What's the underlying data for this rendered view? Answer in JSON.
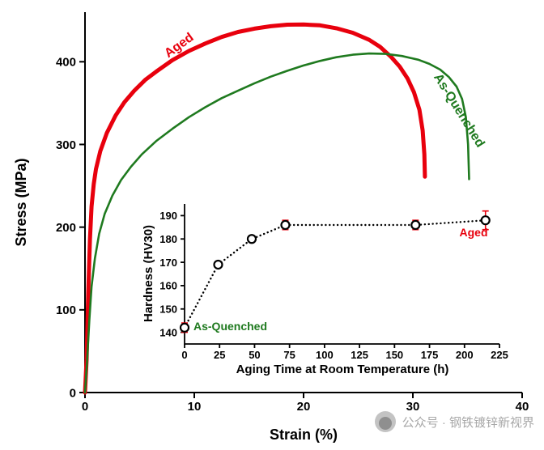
{
  "colors": {
    "aged_red": "#e8000d",
    "as_quenched_green": "#1f7a1f",
    "axis_black": "#000000",
    "error_bars": "#e8000d",
    "watermark_gray": "#a8a8a8"
  },
  "watermark": {
    "icon": "wechat-official-account-logo",
    "label": "公众号 · 钢铁镀锌新视界"
  },
  "chart_data": [
    {
      "id": "stress-strain",
      "type": "line",
      "title": "",
      "xlabel": "Strain (%)",
      "ylabel": "Stress (MPa)",
      "xlim": [
        0,
        40
      ],
      "ylim": [
        0,
        460
      ],
      "xticks": [
        0,
        10,
        20,
        30,
        40
      ],
      "yticks": [
        0,
        100,
        200,
        300,
        400
      ],
      "grid": false,
      "legend": "inline-rotated-labels",
      "series": [
        {
          "name": "Aged",
          "color": "#e8000d",
          "width": 5,
          "points": [
            [
              0,
              0
            ],
            [
              0.15,
              40
            ],
            [
              0.3,
              120
            ],
            [
              0.45,
              185
            ],
            [
              0.6,
              225
            ],
            [
              0.8,
              252
            ],
            [
              1.0,
              270
            ],
            [
              1.4,
              292
            ],
            [
              2.0,
              314
            ],
            [
              2.8,
              335
            ],
            [
              3.6,
              351
            ],
            [
              4.5,
              365
            ],
            [
              5.5,
              378
            ],
            [
              6.5,
              388
            ],
            [
              8.0,
              402
            ],
            [
              9.5,
              413
            ],
            [
              11,
              422
            ],
            [
              12.5,
              430
            ],
            [
              14,
              436
            ],
            [
              15.5,
              440
            ],
            [
              17,
              443
            ],
            [
              18.5,
              444.8
            ],
            [
              20,
              445
            ],
            [
              21.5,
              444
            ],
            [
              23,
              440.5
            ],
            [
              24.5,
              435
            ],
            [
              26,
              426.5
            ],
            [
              27,
              418
            ],
            [
              28,
              406
            ],
            [
              28.8,
              394
            ],
            [
              29.5,
              380
            ],
            [
              30.1,
              363
            ],
            [
              30.6,
              342
            ],
            [
              30.9,
              317
            ],
            [
              31.05,
              288
            ],
            [
              31.1,
              261
            ]
          ]
        },
        {
          "name": "As-Quenched",
          "color": "#1f7a1f",
          "width": 2.6,
          "points": [
            [
              0,
              0
            ],
            [
              0.2,
              40
            ],
            [
              0.4,
              88
            ],
            [
              0.6,
              128
            ],
            [
              0.9,
              162
            ],
            [
              1.3,
              192
            ],
            [
              1.8,
              216
            ],
            [
              2.5,
              238
            ],
            [
              3.3,
              257
            ],
            [
              4.2,
              273
            ],
            [
              5.2,
              288
            ],
            [
              6.5,
              304
            ],
            [
              8,
              319
            ],
            [
              9.5,
              333
            ],
            [
              11,
              345
            ],
            [
              12.5,
              356
            ],
            [
              14,
              365
            ],
            [
              15.5,
              374
            ],
            [
              17,
              382
            ],
            [
              18.5,
              389
            ],
            [
              20,
              395.5
            ],
            [
              21.5,
              401
            ],
            [
              23,
              405.5
            ],
            [
              24.5,
              408.5
            ],
            [
              26,
              410
            ],
            [
              27.5,
              409.5
            ],
            [
              29,
              407
            ],
            [
              30.5,
              402.5
            ],
            [
              31.5,
              397.5
            ],
            [
              32.5,
              390.5
            ],
            [
              33.3,
              381.5
            ],
            [
              34,
              370
            ],
            [
              34.5,
              355
            ],
            [
              34.85,
              333
            ],
            [
              35.05,
              300
            ],
            [
              35.15,
              258
            ]
          ]
        }
      ],
      "annotations": [
        {
          "text": "Aged",
          "color": "#e8000d"
        },
        {
          "text": "As-Quenched",
          "color": "#1f7a1f"
        }
      ]
    },
    {
      "id": "hardness-inset",
      "type": "scatter",
      "title": "",
      "xlabel": "Aging Time at Room Temperature (h)",
      "ylabel": "Hardness (HV30)",
      "xlim": [
        0,
        225
      ],
      "ylim": [
        135,
        195
      ],
      "xticks": [
        0,
        25,
        50,
        75,
        100,
        125,
        150,
        175,
        200,
        225
      ],
      "yticks": [
        140,
        150,
        160,
        170,
        180,
        190
      ],
      "grid": false,
      "line_style": "dotted",
      "marker": "open-circle",
      "x": [
        0,
        24,
        48,
        72,
        165,
        215
      ],
      "y": [
        142,
        169,
        180,
        186,
        186,
        188
      ],
      "yerr": [
        2,
        0,
        0,
        2,
        2,
        4
      ],
      "annotations": [
        {
          "text": "As-Quenched",
          "color": "#1f7a1f"
        },
        {
          "text": "Aged",
          "color": "#e8000d"
        }
      ]
    }
  ]
}
